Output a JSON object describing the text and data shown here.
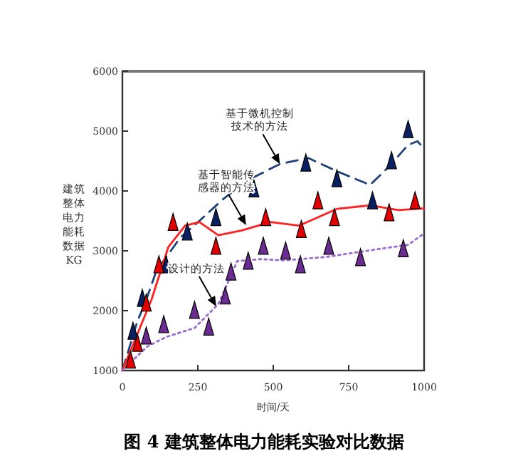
{
  "chart_data": {
    "type": "line",
    "title": "图 4 建筑整体电力能耗实验对比数据",
    "xlabel": "时间/天",
    "ylabel": "建筑整体电力能耗数据KG",
    "xlim": [
      0,
      1000
    ],
    "ylim": [
      1000,
      6000
    ],
    "xticks": [
      0,
      250,
      500,
      750,
      1000
    ],
    "yticks": [
      1000,
      2000,
      3000,
      4000,
      5000,
      6000
    ],
    "grid": false,
    "series": [
      {
        "line_style": "dashed",
        "marker": "none",
        "color": "#1f3f7a",
        "x": [
          0,
          50,
          74,
          113,
          192,
          255,
          333,
          412,
          522,
          616,
          711,
          821,
          884,
          947,
          978,
          1000
        ],
        "values": [
          1000,
          1830,
          2110,
          2670,
          3220,
          3500,
          3860,
          4170,
          4450,
          4550,
          4330,
          4100,
          4410,
          4770,
          4830,
          4710
        ]
      },
      {
        "line_style": "solid",
        "marker": "none",
        "color": "#ff2020",
        "x": [
          0,
          97,
          152,
          208,
          255,
          318,
          396,
          491,
          585,
          711,
          821,
          915,
          1000
        ],
        "values": [
          1000,
          2190,
          3060,
          3420,
          3480,
          3260,
          3340,
          3480,
          3420,
          3700,
          3760,
          3680,
          3710
        ]
      },
      {
        "line_style": "dotted",
        "marker": "none",
        "color": "#9a6ad0",
        "x": [
          0,
          82,
          145,
          239,
          318,
          381,
          459,
          538,
          679,
          836,
          947,
          1000
        ],
        "values": [
          1000,
          1400,
          1560,
          1710,
          2110,
          2830,
          2860,
          2840,
          2900,
          3020,
          3100,
          3290
        ]
      },
      {
        "type": "scatter",
        "marker": "triangle",
        "color": "#0a2060",
        "x": [
          35,
          66,
          145,
          215,
          310,
          436,
          608,
          711,
          829,
          892,
          947
        ],
        "values": [
          1640,
          2190,
          2750,
          3300,
          3540,
          4020,
          4450,
          4190,
          3820,
          4490,
          5010
        ]
      },
      {
        "type": "scatter",
        "marker": "triangle",
        "color": "#e00000",
        "x": [
          27,
          50,
          79,
          121,
          168,
          310,
          475,
          593,
          648,
          703,
          884,
          970
        ],
        "values": [
          1160,
          1440,
          2110,
          2750,
          3460,
          3060,
          3540,
          3340,
          3820,
          3540,
          3620,
          3820
        ]
      },
      {
        "type": "scatter",
        "marker": "triangle",
        "color": "#6a2c91",
        "x": [
          79,
          137,
          239,
          286,
          341,
          360,
          417,
          467,
          541,
          590,
          684,
          789,
          931
        ],
        "values": [
          1560,
          1750,
          1990,
          1710,
          2230,
          2630,
          2810,
          3060,
          2980,
          2750,
          3060,
          2870,
          3020
        ]
      }
    ],
    "annotations": [
      {
        "text": "基于微机控制技术的方法",
        "x": 522,
        "y": 4450
      },
      {
        "text": "基于智能传感器的方法",
        "x": 410,
        "y": 3430
      },
      {
        "text": "设计的方法",
        "x": 311,
        "y": 2070
      }
    ]
  }
}
